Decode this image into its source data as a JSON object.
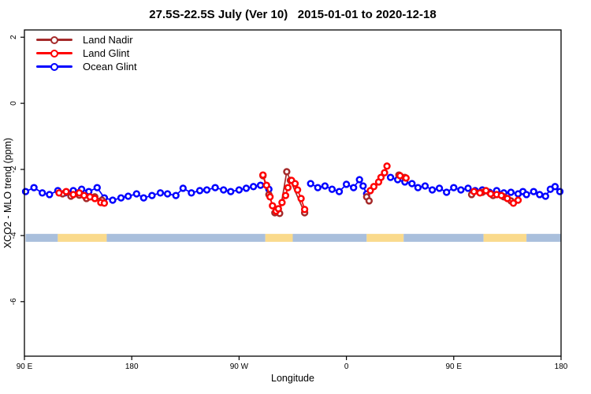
{
  "title": "27.5S-22.5S July (Ver 10)   2015-01-01 to 2020-12-18",
  "chart_data": {
    "type": "line",
    "title": "27.5S-22.5S July (Ver 10)   2015-01-01 to 2020-12-18",
    "xlabel": "Longitude",
    "ylabel": "XCO2 - MLO trend (ppm)",
    "grid": false,
    "legend_position": "top-left",
    "x_axis": {
      "label": "Longitude",
      "range": [
        90,
        540
      ],
      "ticks": [
        {
          "pos": 90,
          "label": "90 E"
        },
        {
          "pos": 180,
          "label": "180"
        },
        {
          "pos": 270,
          "label": "90 W"
        },
        {
          "pos": 360,
          "label": "0"
        },
        {
          "pos": 450,
          "label": "90 E"
        },
        {
          "pos": 540,
          "label": "180"
        }
      ]
    },
    "y_axis": {
      "label": "XCO2 - MLO trend (ppm)",
      "range": [
        -7.65,
        2.22
      ],
      "ticks": [
        2,
        0,
        -2,
        -4,
        -6
      ]
    },
    "band": {
      "y_top": -3.95,
      "y_bottom": -4.19,
      "colors": {
        "ocean": "#a9bfdc",
        "land": "#fada8c"
      },
      "segments": [
        {
          "from": 91,
          "to": 118,
          "type": "ocean"
        },
        {
          "from": 118,
          "to": 159,
          "type": "land"
        },
        {
          "from": 159,
          "to": 292,
          "type": "ocean"
        },
        {
          "from": 292,
          "to": 315,
          "type": "land"
        },
        {
          "from": 315,
          "to": 377,
          "type": "ocean"
        },
        {
          "from": 377,
          "to": 408,
          "type": "land"
        },
        {
          "from": 408,
          "to": 475,
          "type": "ocean"
        },
        {
          "from": 475,
          "to": 511,
          "type": "land"
        },
        {
          "from": 511,
          "to": 540,
          "type": "ocean"
        }
      ]
    },
    "series": [
      {
        "name": "Land Nadir",
        "color": "#a52a2a",
        "z": 1,
        "segments": [
          [
            [
              122,
              -2.74
            ],
            [
              129,
              -2.81
            ],
            [
              136,
              -2.78
            ],
            [
              142,
              -2.88
            ],
            [
              149,
              -2.83
            ],
            [
              155,
              -2.93
            ]
          ],
          [
            [
              290,
              -2.19
            ],
            [
              295,
              -2.76
            ],
            [
              300,
              -3.31
            ],
            [
              304,
              -3.33
            ],
            [
              310,
              -2.07
            ],
            [
              313,
              -2.33
            ],
            [
              325,
              -3.31
            ]
          ],
          [
            [
              377,
              -2.83
            ],
            [
              379,
              -2.95
            ]
          ],
          [
            [
              404,
              -2.17
            ],
            [
              409,
              -2.24
            ]
          ],
          [
            [
              465,
              -2.76
            ],
            [
              474,
              -2.69
            ],
            [
              483,
              -2.79
            ],
            [
              492,
              -2.83
            ],
            [
              498,
              -2.95
            ]
          ]
        ]
      },
      {
        "name": "Land Glint",
        "color": "#ff0000",
        "z": 2,
        "segments": [
          [
            [
              119,
              -2.71
            ],
            [
              125,
              -2.67
            ],
            [
              131,
              -2.76
            ],
            [
              136,
              -2.71
            ],
            [
              140,
              -2.79
            ],
            [
              145,
              -2.83
            ],
            [
              149,
              -2.88
            ],
            [
              154,
              -3.0
            ],
            [
              157,
              -3.02
            ]
          ],
          [
            [
              290,
              -2.17
            ],
            [
              293,
              -2.48
            ],
            [
              296,
              -2.83
            ],
            [
              298,
              -3.1
            ],
            [
              301,
              -3.26
            ],
            [
              303,
              -3.19
            ],
            [
              306,
              -3.0
            ],
            [
              309,
              -2.79
            ],
            [
              311,
              -2.55
            ],
            [
              314,
              -2.33
            ],
            [
              317,
              -2.43
            ],
            [
              319,
              -2.62
            ],
            [
              322,
              -2.88
            ],
            [
              325,
              -3.21
            ]
          ],
          [
            [
              380,
              -2.64
            ],
            [
              383,
              -2.52
            ],
            [
              387,
              -2.38
            ],
            [
              389,
              -2.24
            ],
            [
              392,
              -2.1
            ],
            [
              394,
              -1.9
            ]
          ],
          [
            [
              405,
              -2.19
            ],
            [
              410,
              -2.26
            ]
          ],
          [
            [
              467,
              -2.67
            ],
            [
              472,
              -2.71
            ],
            [
              477,
              -2.64
            ],
            [
              481,
              -2.74
            ],
            [
              486,
              -2.76
            ],
            [
              490,
              -2.79
            ],
            [
              495,
              -2.88
            ],
            [
              500,
              -3.02
            ],
            [
              504,
              -2.93
            ]
          ]
        ]
      },
      {
        "name": "Ocean Glint",
        "color": "#0000ff",
        "z": 0,
        "segments": [
          [
            [
              91,
              -2.67
            ],
            [
              98,
              -2.55
            ],
            [
              105,
              -2.71
            ],
            [
              111,
              -2.76
            ],
            [
              118,
              -2.64
            ],
            [
              124,
              -2.71
            ],
            [
              131,
              -2.64
            ],
            [
              138,
              -2.6
            ],
            [
              144,
              -2.67
            ],
            [
              151,
              -2.55
            ],
            [
              157,
              -2.86
            ],
            [
              164,
              -2.93
            ],
            [
              171,
              -2.86
            ],
            [
              177,
              -2.81
            ],
            [
              184,
              -2.74
            ],
            [
              190,
              -2.86
            ],
            [
              197,
              -2.79
            ],
            [
              204,
              -2.71
            ],
            [
              210,
              -2.74
            ],
            [
              217,
              -2.79
            ],
            [
              223,
              -2.57
            ],
            [
              230,
              -2.71
            ],
            [
              237,
              -2.64
            ],
            [
              243,
              -2.62
            ],
            [
              250,
              -2.55
            ],
            [
              257,
              -2.62
            ],
            [
              263,
              -2.67
            ],
            [
              270,
              -2.62
            ],
            [
              276,
              -2.57
            ],
            [
              282,
              -2.52
            ],
            [
              288,
              -2.48
            ],
            [
              295,
              -2.6
            ]
          ],
          [
            [
              330,
              -2.43
            ],
            [
              336,
              -2.55
            ],
            [
              342,
              -2.5
            ],
            [
              348,
              -2.6
            ],
            [
              354,
              -2.67
            ],
            [
              360,
              -2.45
            ],
            [
              366,
              -2.55
            ],
            [
              371,
              -2.31
            ],
            [
              374,
              -2.5
            ],
            [
              377,
              -2.74
            ]
          ],
          [
            [
              397,
              -2.24
            ],
            [
              403,
              -2.31
            ],
            [
              409,
              -2.38
            ],
            [
              415,
              -2.43
            ],
            [
              420,
              -2.55
            ],
            [
              426,
              -2.5
            ],
            [
              432,
              -2.62
            ],
            [
              438,
              -2.57
            ],
            [
              444,
              -2.69
            ],
            [
              450,
              -2.55
            ],
            [
              456,
              -2.62
            ],
            [
              462,
              -2.57
            ],
            [
              468,
              -2.64
            ],
            [
              474,
              -2.62
            ],
            [
              480,
              -2.69
            ],
            [
              486,
              -2.64
            ],
            [
              492,
              -2.71
            ],
            [
              498,
              -2.69
            ],
            [
              504,
              -2.74
            ],
            [
              508,
              -2.67
            ],
            [
              511,
              -2.76
            ],
            [
              517,
              -2.67
            ],
            [
              522,
              -2.76
            ],
            [
              527,
              -2.81
            ],
            [
              531,
              -2.6
            ],
            [
              535,
              -2.52
            ],
            [
              539,
              -2.67
            ]
          ]
        ]
      }
    ]
  }
}
